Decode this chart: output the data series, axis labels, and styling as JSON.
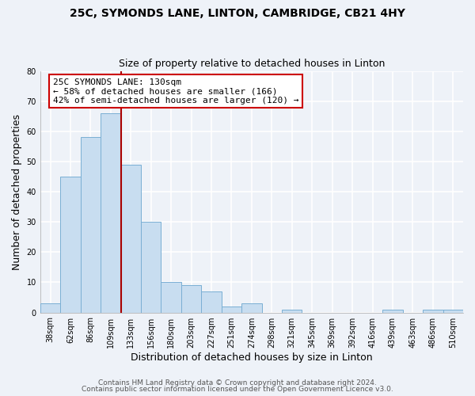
{
  "title1": "25C, SYMONDS LANE, LINTON, CAMBRIDGE, CB21 4HY",
  "title2": "Size of property relative to detached houses in Linton",
  "xlabel": "Distribution of detached houses by size in Linton",
  "ylabel": "Number of detached properties",
  "categories": [
    "38sqm",
    "62sqm",
    "86sqm",
    "109sqm",
    "133sqm",
    "156sqm",
    "180sqm",
    "203sqm",
    "227sqm",
    "251sqm",
    "274sqm",
    "298sqm",
    "321sqm",
    "345sqm",
    "369sqm",
    "392sqm",
    "416sqm",
    "439sqm",
    "463sqm",
    "486sqm",
    "510sqm"
  ],
  "values": [
    3,
    45,
    58,
    66,
    49,
    30,
    10,
    9,
    7,
    2,
    3,
    0,
    1,
    0,
    0,
    0,
    0,
    1,
    0,
    1,
    1
  ],
  "bar_color": "#c8ddf0",
  "bar_edge_color": "#7aafd4",
  "highlight_line_index": 4,
  "highlight_line_color": "#aa0000",
  "ylim": [
    0,
    80
  ],
  "yticks": [
    0,
    10,
    20,
    30,
    40,
    50,
    60,
    70,
    80
  ],
  "annotation_title": "25C SYMONDS LANE: 130sqm",
  "annotation_line1": "← 58% of detached houses are smaller (166)",
  "annotation_line2": "42% of semi-detached houses are larger (120) →",
  "annotation_box_color": "#ffffff",
  "annotation_box_edge": "#cc0000",
  "footer1": "Contains HM Land Registry data © Crown copyright and database right 2024.",
  "footer2": "Contains public sector information licensed under the Open Government Licence v3.0.",
  "background_color": "#eef2f8",
  "plot_background_color": "#eef2f8",
  "grid_color": "#ffffff",
  "title_fontsize": 10,
  "subtitle_fontsize": 9,
  "axis_label_fontsize": 9,
  "tick_fontsize": 7,
  "annotation_fontsize": 8,
  "footer_fontsize": 6.5
}
